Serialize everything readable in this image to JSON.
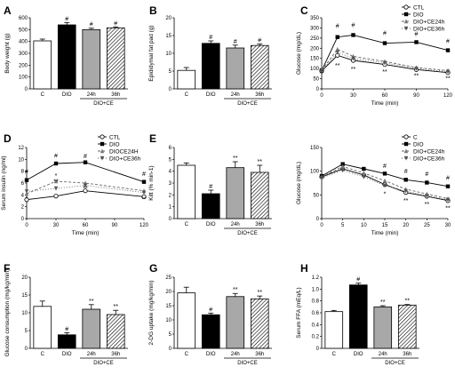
{
  "chart_data": [
    {
      "panel": "A",
      "type": "bar",
      "categories": [
        "C",
        "DIO",
        "24h",
        "36h"
      ],
      "group_label": "DIO+CE",
      "values": [
        405,
        540,
        500,
        515
      ],
      "errors": [
        15,
        20,
        12,
        8
      ],
      "ylabel": "Body weight (g)",
      "ylim": [
        0,
        600
      ],
      "yticks": [
        0,
        100,
        200,
        300,
        400,
        500,
        600
      ],
      "annotations": [
        "",
        "#",
        "#",
        "#"
      ],
      "fills": [
        "white",
        "black",
        "gray",
        "hatch"
      ]
    },
    {
      "panel": "B",
      "type": "bar",
      "categories": [
        "C",
        "DIO",
        "24h",
        "36h"
      ],
      "group_label": "DIO+CE",
      "values": [
        5.2,
        12.8,
        11.5,
        12.2
      ],
      "errors": [
        0.8,
        0.7,
        0.8,
        0.4
      ],
      "ylabel": "Epididymal fat pad (g)",
      "ylim": [
        0,
        20
      ],
      "yticks": [
        0,
        5,
        10,
        15,
        20
      ],
      "annotations": [
        "",
        "#",
        "#",
        "#"
      ],
      "fills": [
        "white",
        "black",
        "gray",
        "hatch"
      ]
    },
    {
      "panel": "C",
      "type": "line",
      "x": [
        0,
        15,
        30,
        60,
        90,
        120
      ],
      "xlabel": "Time (min)",
      "ylabel": "Glucose (mg/dL)",
      "xlim": [
        0,
        120
      ],
      "xticks": [
        0,
        30,
        60,
        90,
        120
      ],
      "ylim": [
        0,
        350
      ],
      "yticks": [
        0,
        50,
        100,
        150,
        200,
        250,
        300,
        350
      ],
      "series": [
        {
          "name": "CTL",
          "values": [
            88,
            165,
            140,
            120,
            95,
            80
          ],
          "marker": "circle-open",
          "dash": ""
        },
        {
          "name": "DIO",
          "values": [
            90,
            255,
            265,
            225,
            230,
            190
          ],
          "marker": "square",
          "dash": ""
        },
        {
          "name": "DIO+CE24h",
          "values": [
            92,
            195,
            160,
            135,
            105,
            90
          ],
          "marker": "triangle-up",
          "dash": "3,2"
        },
        {
          "name": "DIO+CE36h",
          "values": [
            89,
            180,
            150,
            128,
            100,
            85
          ],
          "marker": "triangle-down",
          "dash": "1,2"
        }
      ],
      "legend": "top-right",
      "annotations": [
        {
          "x": 15,
          "y": 300,
          "text": "#"
        },
        {
          "x": 30,
          "y": 305,
          "text": "#"
        },
        {
          "x": 60,
          "y": 265,
          "text": "#"
        },
        {
          "x": 90,
          "y": 260,
          "text": "#"
        },
        {
          "x": 120,
          "y": 225,
          "text": "#"
        },
        {
          "x": 15,
          "y": 105,
          "text": "**"
        },
        {
          "x": 30,
          "y": 88,
          "text": "**"
        },
        {
          "x": 60,
          "y": 75,
          "text": "**"
        },
        {
          "x": 90,
          "y": 55,
          "text": "**"
        },
        {
          "x": 120,
          "y": 42,
          "text": "**"
        }
      ]
    },
    {
      "panel": "D",
      "type": "line",
      "x": [
        0,
        30,
        60,
        120
      ],
      "xlabel": "Time (min)",
      "ylabel": "Serum insulin (ng/ml)",
      "xlim": [
        0,
        120
      ],
      "xticks": [
        0,
        30,
        60,
        90,
        120
      ],
      "ylim": [
        0,
        12
      ],
      "yticks": [
        0,
        2,
        4,
        6,
        8,
        10,
        12
      ],
      "series": [
        {
          "name": "CTL",
          "values": [
            3.2,
            3.8,
            4.7,
            3.7
          ],
          "marker": "circle-open",
          "dash": ""
        },
        {
          "name": "DIO",
          "values": [
            6.5,
            9.3,
            9.5,
            6.2
          ],
          "marker": "square",
          "dash": ""
        },
        {
          "name": "DIOCE24H",
          "values": [
            4.2,
            6.3,
            6.0,
            4.7
          ],
          "marker": "triangle-up",
          "dash": "3,2"
        },
        {
          "name": "DIO+CE36h",
          "values": [
            4.6,
            5.1,
            5.6,
            4.4
          ],
          "marker": "triangle-down",
          "dash": "1,2"
        }
      ],
      "legend": "top-right",
      "annotations": [
        {
          "x": 0,
          "y": 7.6,
          "text": "#"
        },
        {
          "x": 30,
          "y": 10.3,
          "text": "#"
        },
        {
          "x": 60,
          "y": 10.2,
          "text": "#"
        },
        {
          "x": 120,
          "y": 7.2,
          "text": "#"
        },
        {
          "x": 30,
          "y": 6.9,
          "text": "*"
        },
        {
          "x": 30,
          "y": 5.9,
          "text": "**"
        },
        {
          "x": 60,
          "y": 4.8,
          "text": "**"
        },
        {
          "x": 120,
          "y": 2.9,
          "text": "**"
        },
        {
          "x": 0,
          "y": 3.0,
          "text": "*"
        }
      ]
    },
    {
      "panel": "E",
      "type": "bar",
      "categories": [
        "C",
        "DIO",
        "24h",
        "36h"
      ],
      "group_label": "DIO+CE",
      "values": [
        4.5,
        2.1,
        4.3,
        3.9
      ],
      "errors": [
        0.2,
        0.3,
        0.5,
        0.6
      ],
      "ylabel": "Kitt (% min-1)",
      "ylim": [
        0,
        6
      ],
      "yticks": [
        0,
        1,
        2,
        3,
        4,
        5,
        6
      ],
      "annotations": [
        "",
        "#",
        "**",
        "**"
      ],
      "fills": [
        "white",
        "black",
        "gray",
        "hatch"
      ]
    },
    {
      "panel": "E2",
      "type": "line",
      "x": [
        0,
        5,
        10,
        15,
        20,
        25,
        30
      ],
      "xlabel": "Time (min)",
      "ylabel": "Glucose (mg/dL)",
      "xlim": [
        0,
        30
      ],
      "xticks": [
        0,
        5,
        10,
        15,
        20,
        25,
        30
      ],
      "ylim": [
        0,
        150
      ],
      "yticks": [
        0,
        50,
        100,
        150
      ],
      "series": [
        {
          "name": "C",
          "values": [
            88,
            105,
            92,
            72,
            55,
            47,
            38
          ],
          "marker": "circle-open",
          "dash": ""
        },
        {
          "name": "DIO",
          "values": [
            90,
            115,
            105,
            95,
            82,
            76,
            68
          ],
          "marker": "square",
          "dash": ""
        },
        {
          "name": "DIO+CE24h",
          "values": [
            88,
            110,
            96,
            80,
            62,
            52,
            42
          ],
          "marker": "triangle-up",
          "dash": "3,2"
        },
        {
          "name": "DIO+CE36h",
          "values": [
            86,
            102,
            88,
            70,
            58,
            48,
            40
          ],
          "marker": "triangle-down",
          "dash": "1,2"
        }
      ],
      "legend": "top-right",
      "annotations": [
        {
          "x": 15,
          "y": 107,
          "text": "#"
        },
        {
          "x": 20,
          "y": 96,
          "text": "#"
        },
        {
          "x": 25,
          "y": 90,
          "text": "#"
        },
        {
          "x": 30,
          "y": 82,
          "text": "#"
        },
        {
          "x": 15,
          "y": 48,
          "text": "*"
        },
        {
          "x": 20,
          "y": 34,
          "text": "**"
        },
        {
          "x": 25,
          "y": 26,
          "text": "**"
        },
        {
          "x": 30,
          "y": 18,
          "text": "**"
        }
      ]
    },
    {
      "panel": "F",
      "type": "bar",
      "categories": [
        "C",
        "DIO",
        "24h",
        "36h"
      ],
      "group_label": "DIO+CE",
      "values": [
        11.8,
        3.8,
        11.0,
        9.5
      ],
      "errors": [
        1.5,
        0.6,
        1.3,
        1.2
      ],
      "ylabel": "Glucose consumption (mg/kg/min)",
      "ylim": [
        0,
        20
      ],
      "yticks": [
        0,
        5,
        10,
        15,
        20
      ],
      "annotations": [
        "",
        "#",
        "**",
        "**"
      ],
      "fills": [
        "white",
        "black",
        "gray",
        "hatch"
      ]
    },
    {
      "panel": "G",
      "type": "bar",
      "categories": [
        "C",
        "DIO",
        "24h",
        "36h"
      ],
      "group_label": "DIO+CE",
      "values": [
        19.5,
        11.8,
        18.2,
        17.4
      ],
      "errors": [
        2.0,
        0.6,
        1.1,
        1.0
      ],
      "ylabel": "2-DG uptake (mg/kg/min)",
      "ylim": [
        0,
        25
      ],
      "yticks": [
        0,
        5,
        10,
        15,
        20,
        25
      ],
      "annotations": [
        "",
        "#",
        "**",
        "**"
      ],
      "fills": [
        "white",
        "black",
        "gray",
        "hatch"
      ]
    },
    {
      "panel": "H",
      "type": "bar",
      "categories": [
        "C",
        "DIO",
        "24h",
        "36h"
      ],
      "group_label": "DIO+CE",
      "values": [
        0.62,
        1.07,
        0.7,
        0.73
      ],
      "errors": [
        0.02,
        0.03,
        0.02,
        0.01
      ],
      "ylabel": "Serum FFA (mEq/L)",
      "ylim": [
        0,
        1.2
      ],
      "yticks": [
        0,
        0.2,
        0.4,
        0.6,
        0.8,
        1.0,
        1.2
      ],
      "ytick_labels": [
        "0",
        "0.2",
        "0.4",
        "0.6",
        "0.8",
        "1.0",
        "1.2"
      ],
      "annotations": [
        "",
        "#",
        "**",
        "**"
      ],
      "fills": [
        "white",
        "black",
        "gray",
        "hatch"
      ]
    }
  ],
  "panel_letters": [
    "A",
    "B",
    "C",
    "D",
    "E",
    "F",
    "G",
    "H"
  ]
}
